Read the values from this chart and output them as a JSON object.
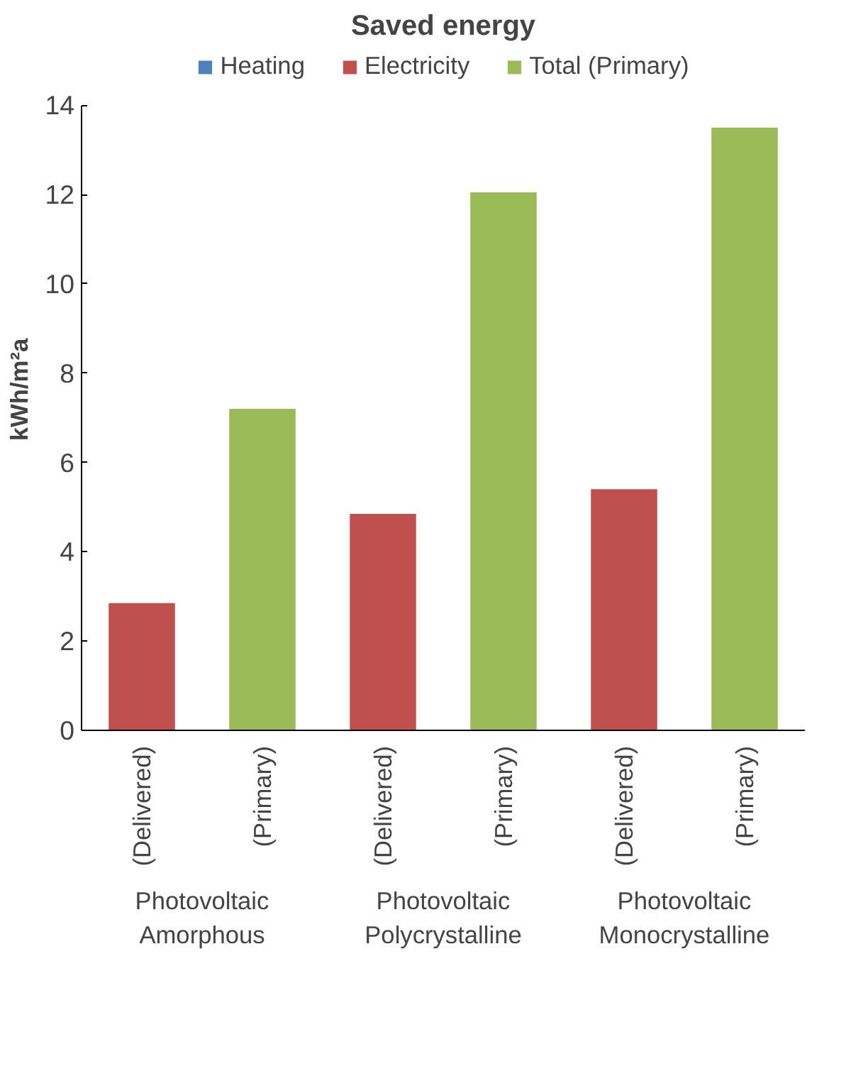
{
  "chart_data": {
    "type": "bar",
    "title": "Saved energy",
    "ylabel": "kWh/m²a",
    "categories": [
      "(Delivered)",
      "(Primary)",
      "(Delivered)",
      "(Primary)",
      "(Delivered)",
      "(Primary)"
    ],
    "series": [
      {
        "name": "Heating",
        "color": "#4f81bd",
        "values": [
          null,
          null,
          null,
          null,
          null,
          null
        ]
      },
      {
        "name": "Electricity",
        "color": "#c0504d",
        "values": [
          2.85,
          null,
          4.85,
          null,
          5.4,
          null
        ]
      },
      {
        "name": "Total (Primary)",
        "color": "#9bbb59",
        "values": [
          null,
          7.2,
          null,
          12.05,
          null,
          13.5
        ]
      }
    ],
    "ylim": [
      0,
      14
    ],
    "yticks": [
      0,
      2,
      4,
      6,
      8,
      10,
      12,
      14
    ],
    "grid": false,
    "legend": "top",
    "annotations": [
      "Photovoltaic Amorphous",
      "Photovoltaic Polycrystalline",
      "Photovoltaic Monocrystalline"
    ]
  }
}
